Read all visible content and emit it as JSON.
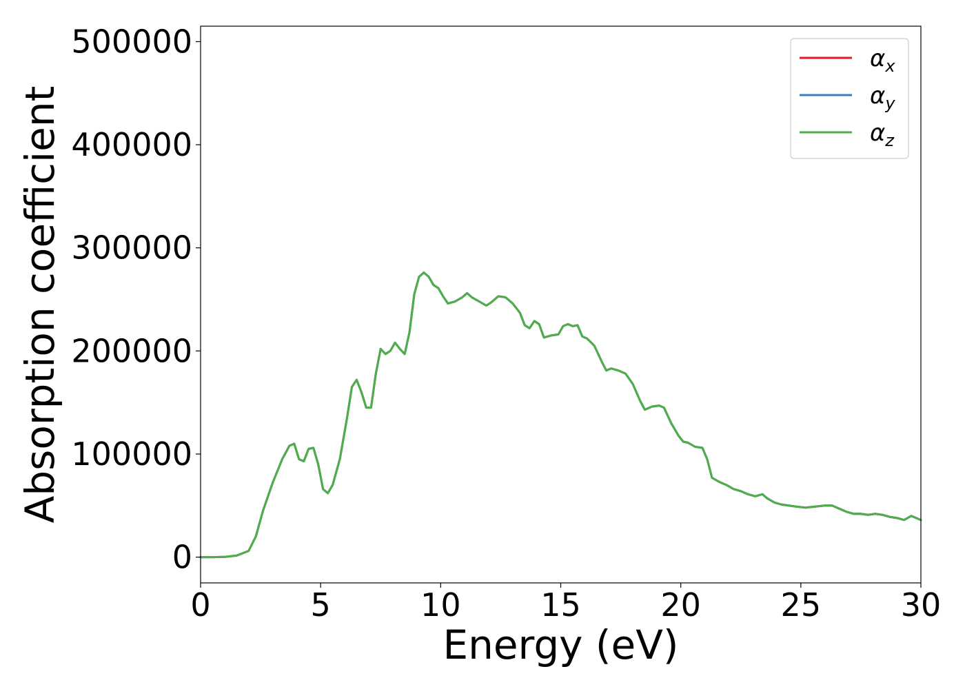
{
  "chart_data": {
    "type": "line",
    "title": "",
    "xlabel": "Energy (eV)",
    "ylabel": "Absorption coefficient",
    "xlim": [
      0,
      30
    ],
    "ylim": [
      -25000,
      515000
    ],
    "x_ticks": [
      0,
      5,
      10,
      15,
      20,
      25,
      30
    ],
    "y_ticks": [
      0,
      100000,
      200000,
      300000,
      400000,
      500000
    ],
    "x_tick_labels": [
      "0",
      "5",
      "10",
      "15",
      "20",
      "25",
      "30"
    ],
    "y_tick_labels": [
      "0",
      "100000",
      "200000",
      "300000",
      "400000",
      "500000"
    ],
    "grid": false,
    "legend_position": "top-right",
    "x": [
      0,
      0.5,
      1.0,
      1.5,
      2.0,
      2.3,
      2.6,
      3.0,
      3.4,
      3.7,
      3.9,
      4.1,
      4.3,
      4.5,
      4.7,
      4.9,
      5.1,
      5.3,
      5.5,
      5.8,
      6.1,
      6.3,
      6.5,
      6.7,
      6.9,
      7.1,
      7.3,
      7.5,
      7.7,
      7.9,
      8.1,
      8.3,
      8.5,
      8.7,
      8.9,
      9.1,
      9.3,
      9.5,
      9.7,
      9.9,
      10.1,
      10.3,
      10.6,
      10.9,
      11.1,
      11.3,
      11.6,
      11.9,
      12.1,
      12.4,
      12.7,
      13.0,
      13.3,
      13.5,
      13.7,
      13.9,
      14.1,
      14.3,
      14.6,
      14.9,
      15.1,
      15.3,
      15.5,
      15.7,
      15.9,
      16.1,
      16.4,
      16.7,
      16.9,
      17.1,
      17.4,
      17.7,
      18.0,
      18.3,
      18.5,
      18.8,
      19.1,
      19.3,
      19.6,
      19.9,
      20.1,
      20.3,
      20.6,
      20.9,
      21.1,
      21.3,
      21.6,
      21.9,
      22.2,
      22.5,
      22.8,
      23.1,
      23.4,
      23.6,
      23.9,
      24.2,
      24.5,
      24.8,
      25.2,
      25.6,
      26.0,
      26.3,
      26.6,
      26.9,
      27.2,
      27.5,
      27.8,
      28.1,
      28.4,
      28.7,
      29.0,
      29.3,
      29.6,
      30.0
    ],
    "series": [
      {
        "name": "αx",
        "color": "#e41a1c",
        "values": [
          0,
          0,
          200,
          1500,
          6000,
          20000,
          45000,
          72000,
          95000,
          108000,
          110000,
          95000,
          93000,
          105000,
          106000,
          90000,
          66000,
          62000,
          70000,
          95000,
          135000,
          165000,
          172000,
          160000,
          145000,
          145000,
          178000,
          202000,
          197000,
          200000,
          208000,
          202000,
          197000,
          218000,
          255000,
          272000,
          276000,
          272000,
          264000,
          261000,
          253000,
          246000,
          248000,
          252000,
          256000,
          252000,
          248000,
          244000,
          247000,
          253000,
          252000,
          246000,
          237000,
          225000,
          222000,
          229000,
          226000,
          213000,
          215000,
          216000,
          224000,
          226000,
          224000,
          225000,
          214000,
          212000,
          205000,
          190000,
          181000,
          183000,
          181000,
          178000,
          168000,
          152000,
          143000,
          146000,
          147000,
          145000,
          130000,
          118000,
          112000,
          111000,
          107000,
          106000,
          95000,
          77000,
          73000,
          70000,
          66000,
          64000,
          61000,
          59000,
          61000,
          57000,
          53000,
          51000,
          50000,
          49000,
          48000,
          49000,
          50000,
          50000,
          47000,
          44000,
          42000,
          42000,
          41000,
          42000,
          41000,
          39000,
          38000,
          36000,
          40000,
          36000
        ]
      },
      {
        "name": "αy",
        "color": "#377eb8",
        "values": [
          0,
          0,
          200,
          1500,
          6000,
          20000,
          45000,
          72000,
          95000,
          108000,
          110000,
          95000,
          93000,
          105000,
          106000,
          90000,
          66000,
          62000,
          70000,
          95000,
          135000,
          165000,
          172000,
          160000,
          145000,
          145000,
          178000,
          202000,
          197000,
          200000,
          208000,
          202000,
          197000,
          218000,
          255000,
          272000,
          276000,
          272000,
          264000,
          261000,
          253000,
          246000,
          248000,
          252000,
          256000,
          252000,
          248000,
          244000,
          247000,
          253000,
          252000,
          246000,
          237000,
          225000,
          222000,
          229000,
          226000,
          213000,
          215000,
          216000,
          224000,
          226000,
          224000,
          225000,
          214000,
          212000,
          205000,
          190000,
          181000,
          183000,
          181000,
          178000,
          168000,
          152000,
          143000,
          146000,
          147000,
          145000,
          130000,
          118000,
          112000,
          111000,
          107000,
          106000,
          95000,
          77000,
          73000,
          70000,
          66000,
          64000,
          61000,
          59000,
          61000,
          57000,
          53000,
          51000,
          50000,
          49000,
          48000,
          49000,
          50000,
          50000,
          47000,
          44000,
          42000,
          42000,
          41000,
          42000,
          41000,
          39000,
          38000,
          36000,
          40000,
          36000
        ]
      },
      {
        "name": "αz",
        "color": "#4daf4a",
        "values": [
          0,
          0,
          200,
          1500,
          6000,
          20000,
          45000,
          72000,
          95000,
          108000,
          110000,
          95000,
          93000,
          105000,
          106000,
          90000,
          66000,
          62000,
          70000,
          95000,
          135000,
          165000,
          172000,
          160000,
          145000,
          145000,
          178000,
          202000,
          197000,
          200000,
          208000,
          202000,
          197000,
          218000,
          255000,
          272000,
          276000,
          272000,
          264000,
          261000,
          253000,
          246000,
          248000,
          252000,
          256000,
          252000,
          248000,
          244000,
          247000,
          253000,
          252000,
          246000,
          237000,
          225000,
          222000,
          229000,
          226000,
          213000,
          215000,
          216000,
          224000,
          226000,
          224000,
          225000,
          214000,
          212000,
          205000,
          190000,
          181000,
          183000,
          181000,
          178000,
          168000,
          152000,
          143000,
          146000,
          147000,
          145000,
          130000,
          118000,
          112000,
          111000,
          107000,
          106000,
          95000,
          77000,
          73000,
          70000,
          66000,
          64000,
          61000,
          59000,
          61000,
          57000,
          53000,
          51000,
          50000,
          49000,
          48000,
          49000,
          50000,
          50000,
          47000,
          44000,
          42000,
          42000,
          41000,
          42000,
          41000,
          39000,
          38000,
          36000,
          40000,
          36000
        ]
      }
    ],
    "legend": [
      {
        "symbol": "α",
        "subscript": "x",
        "color": "#e41a1c"
      },
      {
        "symbol": "α",
        "subscript": "y",
        "color": "#377eb8"
      },
      {
        "symbol": "α",
        "subscript": "z",
        "color": "#4daf4a"
      }
    ]
  }
}
